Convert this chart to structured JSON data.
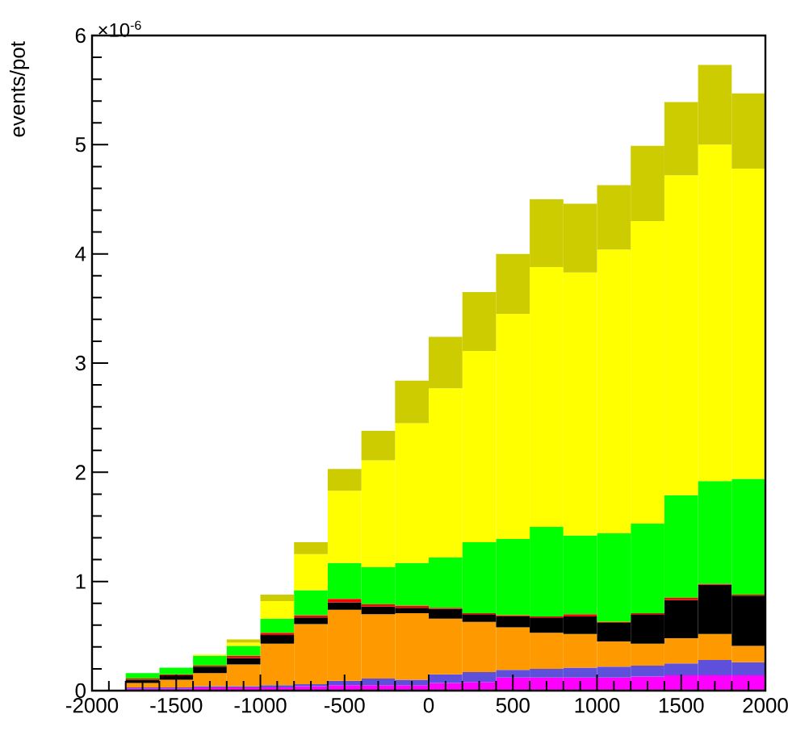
{
  "chart_data": {
    "type": "bar",
    "ylabel": "events/pot",
    "annotations": [
      "×10$^{-6}$"
    ],
    "stacked": true,
    "x": [
      -1900,
      -1700,
      -1500,
      -1300,
      -1100,
      -900,
      -700,
      -500,
      -300,
      -100,
      100,
      300,
      500,
      700,
      900,
      1100,
      1300,
      1500,
      1700,
      1900
    ],
    "xlim": [
      -2000,
      2000
    ],
    "xticks": [
      -2000,
      -1500,
      -1000,
      -500,
      0,
      500,
      1000,
      1500,
      2000
    ],
    "ylim": [
      0,
      6
    ],
    "yticks": [
      0,
      1,
      2,
      3,
      4,
      5,
      6
    ],
    "series": [
      {
        "color": "#ff00ff",
        "values": [
          0,
          0.02,
          0.02,
          0.03,
          0.03,
          0.03,
          0.04,
          0.05,
          0.05,
          0.05,
          0.07,
          0.08,
          0.12,
          0.12,
          0.12,
          0.12,
          0.13,
          0.14,
          0.14,
          0.14
        ]
      },
      {
        "color": "#5f50dc",
        "values": [
          0,
          0.01,
          0.01,
          0.01,
          0.01,
          0.02,
          0.02,
          0.04,
          0.06,
          0.05,
          0.08,
          0.09,
          0.07,
          0.08,
          0.09,
          0.1,
          0.1,
          0.11,
          0.14,
          0.12
        ]
      },
      {
        "color": "#ff9900",
        "values": [
          0,
          0.04,
          0.07,
          0.12,
          0.2,
          0.38,
          0.55,
          0.65,
          0.59,
          0.61,
          0.51,
          0.46,
          0.39,
          0.33,
          0.31,
          0.23,
          0.2,
          0.23,
          0.24,
          0.15
        ]
      },
      {
        "color": "#000000",
        "values": [
          0,
          0.03,
          0.04,
          0.06,
          0.06,
          0.08,
          0.06,
          0.07,
          0.07,
          0.05,
          0.09,
          0.07,
          0.1,
          0.14,
          0.16,
          0.17,
          0.27,
          0.35,
          0.45,
          0.46
        ]
      },
      {
        "color": "#ff0000",
        "values": [
          0,
          0.01,
          0.01,
          0.01,
          0.02,
          0.02,
          0.02,
          0.03,
          0.02,
          0.02,
          0.01,
          0.01,
          0.01,
          0.01,
          0.02,
          0.01,
          0.01,
          0.02,
          0.01,
          0.01
        ]
      },
      {
        "color": "#00ff00",
        "values": [
          0,
          0.05,
          0.06,
          0.09,
          0.09,
          0.13,
          0.23,
          0.33,
          0.34,
          0.39,
          0.46,
          0.65,
          0.7,
          0.82,
          0.72,
          0.81,
          0.82,
          0.94,
          0.94,
          1.06
        ]
      },
      {
        "color": "#ffff00",
        "values": [
          0,
          0,
          0,
          0.01,
          0.03,
          0.16,
          0.33,
          0.66,
          0.98,
          1.28,
          1.55,
          1.75,
          2.06,
          2.38,
          2.41,
          2.6,
          2.77,
          2.93,
          3.08,
          2.84
        ]
      },
      {
        "color": "#cccc00",
        "values": [
          0,
          0,
          0,
          0,
          0.03,
          0.06,
          0.11,
          0.2,
          0.27,
          0.39,
          0.47,
          0.54,
          0.55,
          0.62,
          0.63,
          0.59,
          0.69,
          0.67,
          0.73,
          0.69
        ]
      }
    ]
  }
}
